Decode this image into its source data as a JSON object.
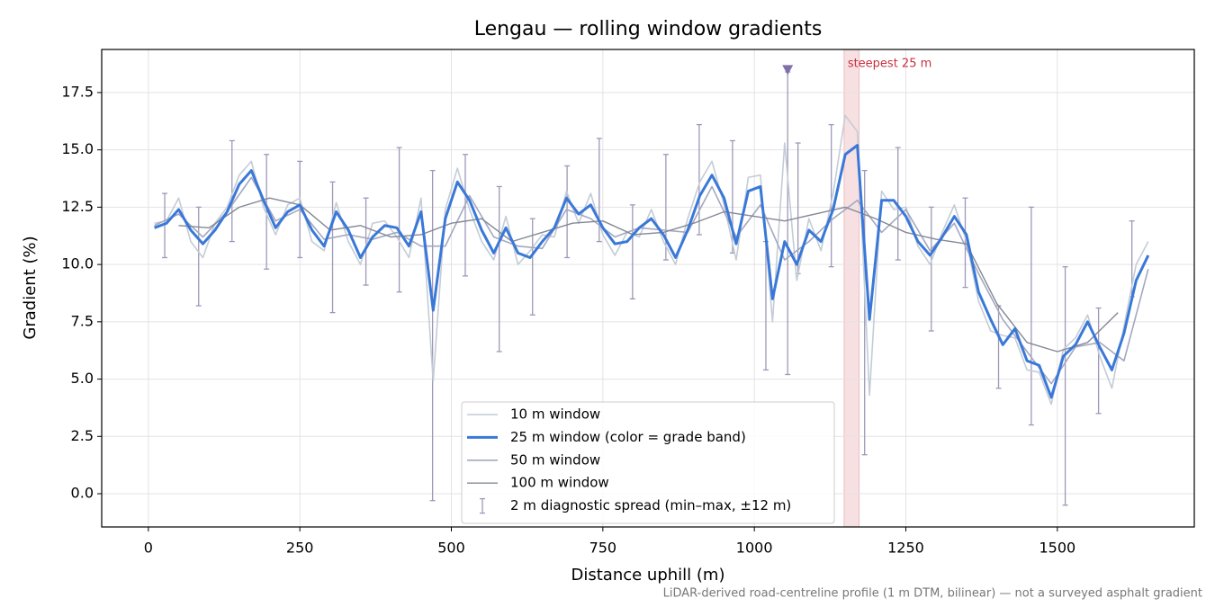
{
  "chart_data": {
    "type": "line",
    "title": "Lengau — rolling window gradients",
    "xlabel": "Distance uphill (m)",
    "ylabel": "Gradient (%)",
    "footnote": "LiDAR-derived road-centreline profile (1 m DTM, bilinear) — not a surveyed asphalt gradient",
    "xlim": [
      -77,
      1726
    ],
    "ylim": [
      -1.45,
      19.38
    ],
    "xticks": [
      0,
      250,
      500,
      750,
      1000,
      1250,
      1500
    ],
    "yticks": [
      {
        "value": 0,
        "label": "0.0"
      },
      2.5,
      {
        "value": 5,
        "label": "5.0"
      },
      7.5,
      {
        "value": 10,
        "label": "10.0"
      },
      12.5,
      {
        "value": 15,
        "label": "15.0"
      },
      17.5
    ],
    "grid": true,
    "legend": "lower center",
    "series": [
      {
        "name": "10 m window",
        "color": "#c3ccd6",
        "width": 1.6,
        "x": [
          10,
          30,
          50,
          70,
          90,
          110,
          130,
          150,
          170,
          190,
          210,
          230,
          250,
          270,
          290,
          310,
          330,
          350,
          370,
          390,
          410,
          430,
          450,
          470,
          490,
          510,
          530,
          550,
          570,
          590,
          610,
          630,
          650,
          670,
          690,
          710,
          730,
          750,
          770,
          790,
          810,
          830,
          850,
          870,
          890,
          910,
          930,
          950,
          970,
          990,
          1010,
          1030,
          1050,
          1070,
          1090,
          1110,
          1130,
          1150,
          1170,
          1190,
          1210,
          1230,
          1250,
          1270,
          1290,
          1310,
          1330,
          1350,
          1370,
          1390,
          1410,
          1430,
          1450,
          1470,
          1490,
          1510,
          1530,
          1550,
          1570,
          1590,
          1610,
          1630,
          1650
        ],
        "values": [
          11.8,
          11.9,
          12.9,
          11.0,
          10.3,
          11.8,
          12.5,
          13.9,
          14.5,
          12.5,
          11.3,
          12.6,
          12.9,
          11.0,
          10.6,
          12.7,
          11.0,
          10.0,
          11.8,
          11.9,
          11.2,
          10.3,
          12.9,
          4.9,
          12.4,
          14.2,
          12.4,
          11.0,
          10.2,
          12.1,
          10.0,
          10.6,
          11.3,
          11.2,
          13.2,
          11.8,
          13.1,
          11.3,
          10.4,
          11.4,
          11.2,
          12.4,
          11.0,
          10.0,
          12.0,
          13.6,
          14.5,
          12.6,
          10.2,
          13.8,
          13.9,
          7.5,
          15.3,
          9.3,
          12.0,
          10.6,
          13.1,
          16.5,
          15.8,
          4.3,
          13.2,
          12.4,
          12.5,
          10.8,
          10.0,
          11.4,
          12.6,
          11.0,
          8.4,
          7.1,
          6.9,
          6.8,
          5.4,
          5.3,
          3.9,
          6.3,
          6.8,
          7.8,
          6.0,
          4.6,
          7.3,
          10.0,
          11.0
        ]
      },
      {
        "name": "25 m window (color = grade band)",
        "color": "#3a78d8",
        "width": 3,
        "z": 2,
        "x": [
          10,
          30,
          50,
          70,
          90,
          110,
          130,
          150,
          170,
          190,
          210,
          230,
          250,
          270,
          290,
          310,
          330,
          350,
          370,
          390,
          410,
          430,
          450,
          470,
          490,
          510,
          530,
          550,
          570,
          590,
          610,
          630,
          650,
          670,
          690,
          710,
          730,
          750,
          770,
          790,
          810,
          830,
          850,
          870,
          890,
          910,
          930,
          950,
          970,
          990,
          1010,
          1030,
          1050,
          1070,
          1090,
          1110,
          1130,
          1150,
          1170,
          1190,
          1210,
          1230,
          1250,
          1270,
          1290,
          1310,
          1330,
          1350,
          1370,
          1390,
          1410,
          1430,
          1450,
          1470,
          1490,
          1510,
          1530,
          1550,
          1570,
          1590,
          1610,
          1630,
          1650
        ],
        "values": [
          11.6,
          11.8,
          12.4,
          11.5,
          10.9,
          11.5,
          12.3,
          13.5,
          14.1,
          12.8,
          11.6,
          12.3,
          12.6,
          11.5,
          10.8,
          12.3,
          11.5,
          10.3,
          11.2,
          11.7,
          11.6,
          10.8,
          12.3,
          8.0,
          12.0,
          13.6,
          12.8,
          11.5,
          10.5,
          11.6,
          10.5,
          10.3,
          11.0,
          11.6,
          12.9,
          12.2,
          12.6,
          11.6,
          10.9,
          11.0,
          11.6,
          12.0,
          11.3,
          10.3,
          11.5,
          13.0,
          13.9,
          12.9,
          10.9,
          13.2,
          13.4,
          8.5,
          11.0,
          10.0,
          11.5,
          11.0,
          12.4,
          14.8,
          15.2,
          7.6,
          12.8,
          12.8,
          12.1,
          11.0,
          10.4,
          11.2,
          12.1,
          11.3,
          8.8,
          7.6,
          6.5,
          7.2,
          5.8,
          5.6,
          4.2,
          6.0,
          6.5,
          7.5,
          6.4,
          5.4,
          7.0,
          9.3,
          10.4
        ]
      },
      {
        "name": "50 m window",
        "color": "#a3a8c0",
        "width": 1.6,
        "x": [
          10,
          50,
          90,
          130,
          170,
          210,
          250,
          290,
          330,
          370,
          410,
          450,
          490,
          530,
          570,
          610,
          650,
          690,
          730,
          770,
          810,
          850,
          890,
          930,
          970,
          1010,
          1050,
          1090,
          1130,
          1170,
          1210,
          1250,
          1290,
          1330,
          1370,
          1410,
          1450,
          1490,
          1530,
          1570,
          1610,
          1650
        ],
        "values": [
          11.7,
          12.2,
          11.2,
          12.3,
          13.8,
          11.9,
          12.4,
          11.1,
          11.3,
          11.1,
          11.4,
          10.8,
          10.8,
          13.0,
          11.2,
          10.8,
          10.7,
          12.4,
          12.0,
          11.2,
          11.6,
          11.5,
          11.4,
          13.4,
          11.2,
          12.6,
          10.2,
          11.0,
          12.0,
          12.8,
          11.4,
          12.4,
          10.6,
          11.8,
          9.6,
          7.6,
          6.2,
          4.8,
          6.4,
          6.6,
          5.8,
          9.8
        ]
      },
      {
        "name": "100 m window",
        "color": "#838896",
        "width": 1.4,
        "x": [
          50,
          100,
          150,
          200,
          250,
          300,
          350,
          400,
          450,
          500,
          550,
          600,
          650,
          700,
          750,
          800,
          850,
          900,
          950,
          1000,
          1050,
          1100,
          1150,
          1200,
          1250,
          1300,
          1350,
          1400,
          1450,
          1500,
          1550,
          1600
        ],
        "values": [
          11.7,
          11.6,
          12.5,
          12.9,
          12.6,
          11.5,
          11.7,
          11.2,
          11.3,
          11.8,
          12.0,
          11.0,
          11.4,
          11.8,
          11.9,
          11.3,
          11.4,
          11.8,
          12.3,
          12.1,
          11.9,
          12.2,
          12.5,
          12.0,
          11.4,
          11.1,
          10.9,
          8.3,
          6.6,
          6.2,
          6.6,
          7.9
        ]
      }
    ],
    "error_bars": {
      "name": "2 m diagnostic spread (min–max, ±12 m)",
      "color": "#9e98b8",
      "x": [
        27,
        83,
        138,
        195,
        250,
        304,
        359,
        414,
        469,
        523,
        579,
        634,
        691,
        744,
        799,
        854,
        909,
        964,
        1019,
        1055,
        1072,
        1127,
        1182,
        1237,
        1292,
        1348,
        1403,
        1457,
        1513,
        1568,
        1623
      ],
      "low": [
        10.3,
        8.2,
        11.0,
        9.8,
        10.3,
        7.9,
        9.1,
        8.8,
        -0.3,
        9.5,
        6.2,
        7.8,
        10.3,
        11.0,
        8.5,
        10.2,
        11.3,
        10.5,
        5.4,
        5.2,
        9.6,
        9.9,
        1.7,
        10.2,
        7.1,
        9.0,
        4.6,
        3.0,
        -0.5,
        3.5,
        8.6
      ],
      "high": [
        13.1,
        12.5,
        15.4,
        14.8,
        14.5,
        13.6,
        12.9,
        15.1,
        14.1,
        14.8,
        13.4,
        12.0,
        14.3,
        15.5,
        12.6,
        14.8,
        16.1,
        15.4,
        11.0,
        18.4,
        15.3,
        16.1,
        14.1,
        15.1,
        12.5,
        12.9,
        8.2,
        12.5,
        9.9,
        8.1,
        11.9
      ]
    },
    "peak_marker": {
      "x": 1055,
      "y": 18.5,
      "color": "#8070a8"
    },
    "highlight": {
      "label": "steepest 25 m",
      "xrange": [
        1148,
        1173
      ],
      "color": "#c8303f"
    }
  }
}
